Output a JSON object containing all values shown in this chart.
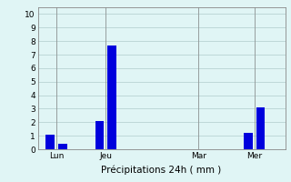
{
  "bar_positions": [
    1,
    2,
    5,
    6,
    13,
    17,
    18
  ],
  "bar_values": [
    1.1,
    0.4,
    2.1,
    7.7,
    0.0,
    1.2,
    3.1
  ],
  "bar_color": "#0000dd",
  "bar_width": 0.7,
  "xtick_positions": [
    1.5,
    5.5,
    13,
    17.5
  ],
  "xtick_labels": [
    "Lun",
    "Jeu",
    "Mar",
    "Mer"
  ],
  "ylabel_ticks": [
    0,
    1,
    2,
    3,
    4,
    5,
    6,
    7,
    8,
    9,
    10
  ],
  "ylim": [
    0,
    10.5
  ],
  "xlim": [
    0,
    20
  ],
  "xlabel": "Précipitations 24h ( mm )",
  "background_color": "#e0f5f5",
  "grid_color": "#b0cccc",
  "axis_label_fontsize": 7.5,
  "tick_fontsize": 6.5
}
